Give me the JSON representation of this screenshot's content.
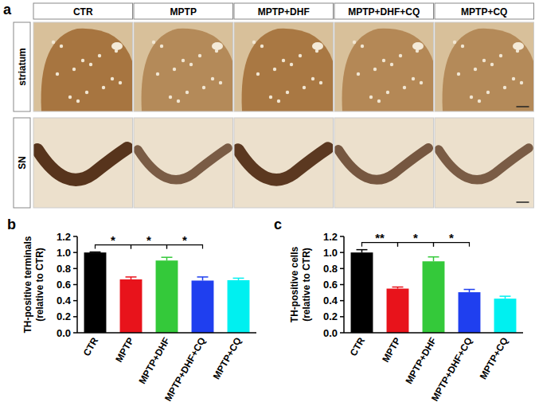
{
  "panel_a": {
    "label": "a",
    "columns": [
      "CTR",
      "MPTP",
      "MPTP+DHF",
      "MPTP+DHF+CQ",
      "MPTP+CQ"
    ],
    "rows": [
      "striatum",
      "SN"
    ]
  },
  "chart_data": [
    {
      "type": "bar",
      "panel": "b",
      "ylabel": [
        "TH-positive terminals",
        "(relative to CTR)"
      ],
      "categories": [
        "CTR",
        "MPTP",
        "MPTP+DHF",
        "MPTP+DHF+CQ",
        "MPTP+CQ"
      ],
      "values": [
        1.0,
        0.665,
        0.9,
        0.65,
        0.655
      ],
      "errors": [
        0.006,
        0.03,
        0.04,
        0.045,
        0.025
      ],
      "colors": [
        "#000000",
        "#e8131b",
        "#34c93a",
        "#1f3fef",
        "#00f0f0"
      ],
      "ylim": [
        0,
        1.2
      ],
      "yticks": [
        {
          "value": 0,
          "label": "0.0"
        },
        0.2,
        0.4,
        0.6,
        0.8,
        {
          "value": 1,
          "label": "1.0"
        },
        1.2
      ],
      "annotations": [
        {
          "from": 0,
          "to": 1,
          "label": "*"
        },
        {
          "from": 1,
          "to": 2,
          "label": "*"
        },
        {
          "from": 2,
          "to": 3,
          "label": "*"
        }
      ]
    },
    {
      "type": "bar",
      "panel": "c",
      "ylabel": [
        "TH-positive cells",
        "(relative to CTR)"
      ],
      "categories": [
        "CTR",
        "MPTP",
        "MPTP+DHF",
        "MPTP+DHF+CQ",
        "MPTP+CQ"
      ],
      "values": [
        1.0,
        0.55,
        0.89,
        0.505,
        0.425
      ],
      "errors": [
        0.035,
        0.02,
        0.055,
        0.035,
        0.03
      ],
      "colors": [
        "#000000",
        "#e8131b",
        "#34c93a",
        "#1f3fef",
        "#00f0f0"
      ],
      "ylim": [
        0,
        1.2
      ],
      "yticks": [
        {
          "value": 0,
          "label": "0.0"
        },
        0.2,
        0.4,
        0.6,
        0.8,
        {
          "value": 1,
          "label": "1.0"
        },
        1.2
      ],
      "annotations": [
        {
          "from": 0,
          "to": 1,
          "label": "**"
        },
        {
          "from": 1,
          "to": 2,
          "label": "*"
        },
        {
          "from": 2,
          "to": 3,
          "label": "*"
        }
      ]
    }
  ]
}
